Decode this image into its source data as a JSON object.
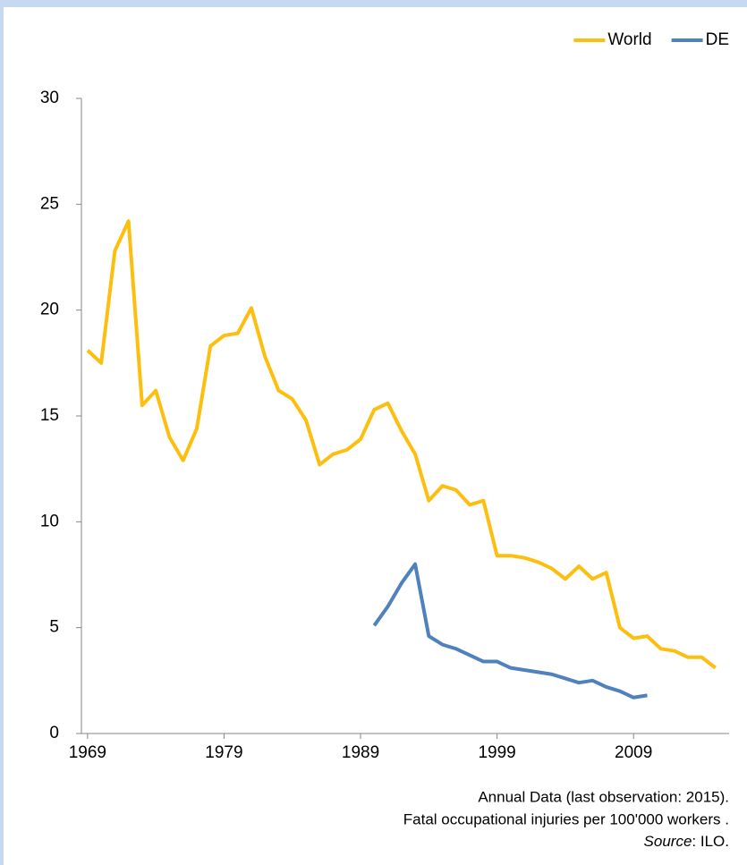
{
  "chart_data": {
    "type": "line",
    "x": [
      1969,
      1970,
      1971,
      1972,
      1973,
      1974,
      1975,
      1976,
      1977,
      1978,
      1979,
      1980,
      1981,
      1982,
      1983,
      1984,
      1985,
      1986,
      1987,
      1988,
      1989,
      1990,
      1991,
      1992,
      1993,
      1994,
      1995,
      1996,
      1997,
      1998,
      1999,
      2000,
      2001,
      2002,
      2003,
      2004,
      2005,
      2006,
      2007,
      2008,
      2009,
      2010,
      2011,
      2012,
      2013,
      2014,
      2015
    ],
    "series": [
      {
        "name": "World",
        "color": "#fcbf10",
        "values": [
          18.1,
          17.5,
          22.8,
          24.2,
          15.5,
          16.2,
          14.0,
          12.9,
          14.4,
          18.3,
          18.8,
          18.9,
          20.1,
          17.8,
          16.2,
          15.8,
          14.8,
          12.7,
          13.2,
          13.4,
          13.9,
          15.3,
          15.6,
          14.3,
          13.2,
          11.0,
          11.7,
          11.5,
          10.8,
          11.0,
          8.4,
          8.4,
          8.3,
          8.1,
          7.8,
          7.3,
          7.9,
          7.3,
          7.6,
          5.0,
          4.5,
          4.6,
          4.0,
          3.9,
          3.6,
          3.6,
          3.1
        ]
      },
      {
        "name": "DE",
        "color": "#4f81bd",
        "values": [
          null,
          null,
          null,
          null,
          null,
          null,
          null,
          null,
          null,
          null,
          null,
          null,
          null,
          null,
          null,
          null,
          null,
          null,
          null,
          null,
          null,
          5.1,
          6.0,
          7.1,
          8.0,
          4.6,
          4.2,
          4.0,
          3.7,
          3.4,
          3.4,
          3.1,
          3.0,
          2.9,
          2.8,
          2.6,
          2.4,
          2.5,
          2.2,
          2.0,
          1.7,
          1.8,
          null,
          null,
          null,
          null,
          null
        ]
      }
    ],
    "xlim": [
      1968.55,
      2016.0
    ],
    "xticks": [
      1969,
      1979,
      1989,
      1999,
      2009
    ],
    "ylim": [
      0,
      30
    ],
    "yticks": [
      0,
      5,
      10,
      15,
      20,
      25,
      30
    ],
    "legend": "top-right",
    "notes": [
      "Annual Data (last observation: 2015).",
      "Fatal occupational injuries per 100'000 workers ."
    ],
    "source_label": "Source",
    "source_text": ": ILO."
  }
}
